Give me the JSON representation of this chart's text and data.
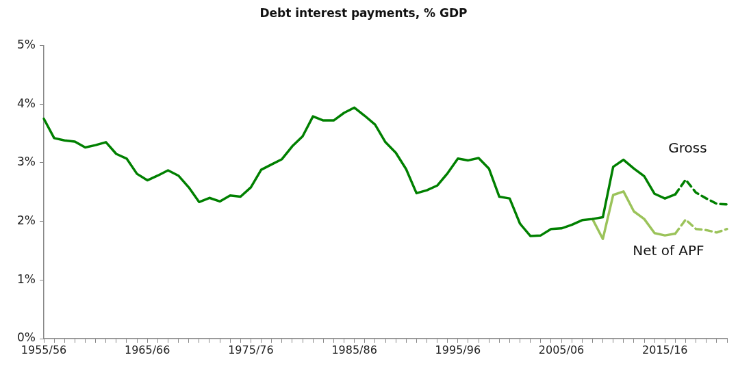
{
  "chart_data": {
    "type": "line",
    "title": "Debt interest payments, % GDP",
    "categories": [
      "1955/56",
      null,
      null,
      null,
      null,
      null,
      null,
      null,
      null,
      null,
      "1965/66",
      null,
      null,
      null,
      null,
      null,
      null,
      null,
      null,
      null,
      "1975/76",
      null,
      null,
      null,
      null,
      null,
      null,
      null,
      null,
      null,
      "1985/86",
      null,
      null,
      null,
      null,
      null,
      null,
      null,
      null,
      null,
      "1995/96",
      null,
      null,
      null,
      null,
      null,
      null,
      null,
      null,
      null,
      "2005/06",
      null,
      null,
      null,
      null,
      null,
      null,
      null,
      null,
      null,
      "2015/16",
      null,
      null,
      null,
      null,
      null,
      null
    ],
    "series": [
      {
        "name": "Gross",
        "color": "#008000",
        "line_style": "solid",
        "values": [
          3.75,
          3.42,
          3.38,
          3.36,
          3.26,
          3.3,
          3.35,
          3.15,
          3.07,
          2.81,
          2.7,
          2.78,
          2.87,
          2.78,
          2.58,
          2.33,
          2.4,
          2.34,
          2.44,
          2.42,
          2.58,
          2.88,
          2.97,
          3.06,
          3.28,
          3.45,
          3.79,
          3.72,
          3.72,
          3.85,
          3.94,
          3.8,
          3.65,
          3.35,
          3.17,
          2.89,
          2.48,
          2.53,
          2.61,
          2.82,
          3.07,
          3.04,
          3.08,
          2.9,
          2.42,
          2.39,
          1.96,
          1.75,
          1.76,
          1.87,
          1.88,
          1.94,
          2.02,
          2.04,
          2.07,
          2.93,
          3.05,
          2.9,
          2.77,
          2.47,
          2.39,
          2.46,
          null,
          null,
          null,
          null,
          null
        ]
      },
      {
        "color": "#008000",
        "line_style": "dashed",
        "values": [
          null,
          null,
          null,
          null,
          null,
          null,
          null,
          null,
          null,
          null,
          null,
          null,
          null,
          null,
          null,
          null,
          null,
          null,
          null,
          null,
          null,
          null,
          null,
          null,
          null,
          null,
          null,
          null,
          null,
          null,
          null,
          null,
          null,
          null,
          null,
          null,
          null,
          null,
          null,
          null,
          null,
          null,
          null,
          null,
          null,
          null,
          null,
          null,
          null,
          null,
          null,
          null,
          null,
          null,
          null,
          null,
          null,
          null,
          null,
          null,
          null,
          2.46,
          2.71,
          2.49,
          2.39,
          2.3,
          2.29
        ]
      },
      {
        "name": "Net of APF",
        "color": "#9bc35a",
        "line_style": "solid",
        "values": [
          null,
          null,
          null,
          null,
          null,
          null,
          null,
          null,
          null,
          null,
          null,
          null,
          null,
          null,
          null,
          null,
          null,
          null,
          null,
          null,
          null,
          null,
          null,
          null,
          null,
          null,
          null,
          null,
          null,
          null,
          null,
          null,
          null,
          null,
          null,
          null,
          null,
          null,
          null,
          null,
          null,
          null,
          null,
          null,
          null,
          null,
          null,
          null,
          null,
          null,
          null,
          null,
          null,
          2.04,
          1.7,
          2.45,
          2.51,
          2.17,
          2.04,
          1.8,
          1.76,
          1.79,
          null,
          null,
          null,
          null,
          null
        ]
      },
      {
        "color": "#9bc35a",
        "line_style": "dashed",
        "values": [
          null,
          null,
          null,
          null,
          null,
          null,
          null,
          null,
          null,
          null,
          null,
          null,
          null,
          null,
          null,
          null,
          null,
          null,
          null,
          null,
          null,
          null,
          null,
          null,
          null,
          null,
          null,
          null,
          null,
          null,
          null,
          null,
          null,
          null,
          null,
          null,
          null,
          null,
          null,
          null,
          null,
          null,
          null,
          null,
          null,
          null,
          null,
          null,
          null,
          null,
          null,
          null,
          null,
          null,
          null,
          null,
          null,
          null,
          null,
          null,
          null,
          1.79,
          2.03,
          1.87,
          1.85,
          1.81,
          1.87
        ]
      }
    ],
    "ylim": [
      0,
      5
    ],
    "yticks": [
      {
        "value": 0,
        "label": "0%"
      },
      {
        "value": 1,
        "label": "1%"
      },
      {
        "value": 2,
        "label": "2%"
      },
      {
        "value": 3,
        "label": "3%"
      },
      {
        "value": 4,
        "label": "4%"
      },
      {
        "value": 5,
        "label": "5%"
      }
    ],
    "grid": false,
    "legend": false,
    "marker": "none"
  }
}
